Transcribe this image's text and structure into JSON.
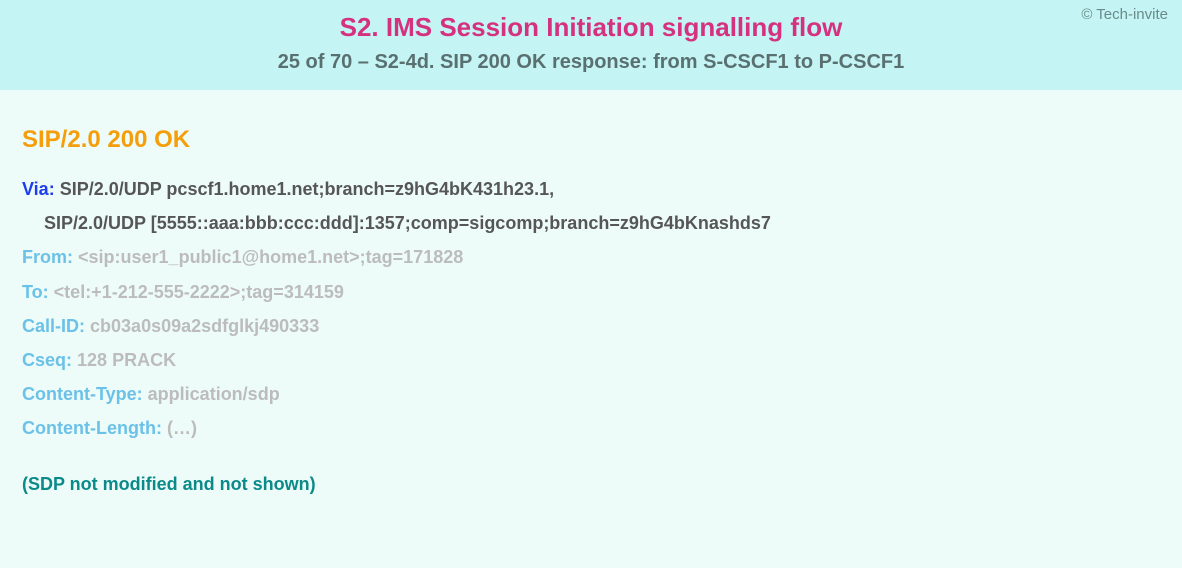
{
  "copyright": "© Tech-invite",
  "header": {
    "title": "S2. IMS Session Initiation signalling flow",
    "subtitle": "25 of 70 – S2-4d. SIP 200 OK response: from S-CSCF1 to P-CSCF1"
  },
  "colors": {
    "header_bg": "#c4f5f4",
    "body_bg": "#edfcf9",
    "title_color": "#d6317f",
    "subtitle_color": "#5a7070",
    "status_color": "#f59e0b",
    "active_name_color": "#1e3cf0",
    "active_value_color": "#565656",
    "dim_name_color": "#6bc1e8",
    "dim_value_color": "#bcbcbc",
    "note_color": "#0b8a8a",
    "copyright_color": "#6a8a8a"
  },
  "typography": {
    "title_fontsize": 26,
    "subtitle_fontsize": 20,
    "status_fontsize": 24,
    "body_fontsize": 18,
    "font_family": "Arial, Helvetica, sans-serif",
    "font_weight": "bold",
    "line_height": 1.9
  },
  "sip": {
    "status_line": "SIP/2.0 200 OK",
    "headers": [
      {
        "name": "Via",
        "value": "SIP/2.0/UDP pcscf1.home1.net;branch=z9hG4bK431h23.1,",
        "emphasized": true
      },
      {
        "continuation": "SIP/2.0/UDP [5555::aaa:bbb:ccc:ddd]:1357;comp=sigcomp;branch=z9hG4bKnashds7",
        "emphasized": true
      },
      {
        "name": "From",
        "value": "<sip:user1_public1@home1.net>;tag=171828",
        "emphasized": false
      },
      {
        "name": "To",
        "value": "<tel:+1-212-555-2222>;tag=314159",
        "emphasized": false
      },
      {
        "name": "Call-ID",
        "value": "cb03a0s09a2sdfglkj490333",
        "emphasized": false
      },
      {
        "name": "Cseq",
        "value": "128 PRACK",
        "emphasized": false
      },
      {
        "name": "Content-Type",
        "value": "application/sdp",
        "emphasized": false
      },
      {
        "name": "Content-Length",
        "value": "(…)",
        "emphasized": false
      }
    ],
    "note": "(SDP not modified and not shown)"
  }
}
